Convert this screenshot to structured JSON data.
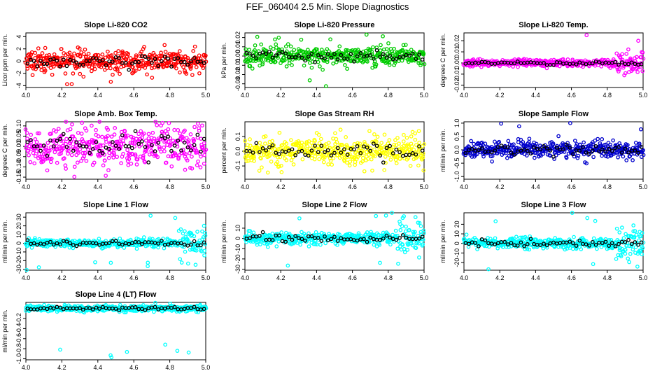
{
  "figure_title": "FEF_060404  2.5 Min. Slope Diagnostics",
  "colors": {
    "red": "#ff0000",
    "green": "#00cc00",
    "magenta": "#ff00ff",
    "yellow": "#ffff00",
    "blue": "#0000cc",
    "cyan": "#00ffff",
    "black": "#000000"
  },
  "chart_data": [
    {
      "type": "scatter",
      "title": "Slope Li-820 CO2",
      "ylabel": "Licor ppm per min.",
      "xlim": [
        4.0,
        5.0
      ],
      "ylim": [
        -4.3,
        4.6
      ],
      "xticks": [
        4.0,
        4.2,
        4.4,
        4.6,
        4.8,
        5.0
      ],
      "yticks": [
        -4,
        -2,
        0,
        2,
        4
      ],
      "color": "#ff0000",
      "spread": 0.9,
      "seed": 11
    },
    {
      "type": "scatter",
      "title": "Slope Li-820 Pressure",
      "ylabel": "kPa per min.",
      "xlim": [
        4.0,
        5.0
      ],
      "ylim": [
        -0.034,
        0.025
      ],
      "xticks": [
        4.0,
        4.2,
        4.4,
        4.6,
        4.8,
        5.0
      ],
      "yticks": [
        -0.03,
        -0.02,
        -0.01,
        0.0,
        0.01,
        0.02
      ],
      "color": "#00cc00",
      "spread": 0.005,
      "seed": 23
    },
    {
      "type": "scatter",
      "title": "Slope Li-820 Temp.",
      "ylabel": "degrees C per min.",
      "xlim": [
        4.0,
        5.0
      ],
      "ylim": [
        -0.022,
        0.027
      ],
      "xticks": [
        4.0,
        4.2,
        4.4,
        4.6,
        4.8,
        5.0
      ],
      "yticks": [
        -0.02,
        -0.01,
        0.0,
        0.01,
        0.02
      ],
      "color": "#ff00ff",
      "spread": 0.0015,
      "seed": 37
    },
    {
      "type": "scatter",
      "title": "Slope Amb. Box Temp.",
      "ylabel": "degrees C per min.",
      "xlim": [
        4.0,
        5.0
      ],
      "ylim": [
        -0.16,
        0.12
      ],
      "xticks": [
        4.0,
        4.2,
        4.4,
        4.6,
        4.8,
        5.0
      ],
      "yticks": [
        -0.15,
        -0.1,
        -0.05,
        0.0,
        0.05,
        0.1
      ],
      "color": "#ff00ff",
      "spread": 0.05,
      "seed": 41
    },
    {
      "type": "scatter",
      "title": "Slope Gas Stream RH",
      "ylabel": "percent per min.",
      "xlim": [
        4.0,
        5.0
      ],
      "ylim": [
        -0.19,
        0.2
      ],
      "xticks": [
        4.0,
        4.2,
        4.4,
        4.6,
        4.8,
        5.0
      ],
      "yticks": [
        -0.1,
        0.0,
        0.1
      ],
      "color": "#ffff00",
      "spread": 0.05,
      "seed": 53
    },
    {
      "type": "scatter",
      "title": "Slope Sample Flow",
      "ylabel": "ml/min per min.",
      "xlim": [
        4.0,
        5.0
      ],
      "ylim": [
        -1.1,
        1.05
      ],
      "xticks": [
        4.0,
        4.2,
        4.4,
        4.6,
        4.8,
        5.0
      ],
      "yticks": [
        -1.0,
        -0.5,
        0.0,
        0.5,
        1.0
      ],
      "color": "#0000cc",
      "spread": 0.15,
      "seed": 67
    },
    {
      "type": "scatter",
      "title": "Slope Line 1 Flow",
      "ylabel": "ml/min per min.",
      "xlim": [
        4.0,
        5.0
      ],
      "ylim": [
        -31,
        35
      ],
      "xticks": [
        4.0,
        4.2,
        4.4,
        4.6,
        4.8,
        5.0
      ],
      "yticks": [
        -30,
        -20,
        -10,
        0,
        10,
        20,
        30
      ],
      "color": "#00ffff",
      "spread": 2.5,
      "seed": 71
    },
    {
      "type": "scatter",
      "title": "Slope Line 2 Flow",
      "ylabel": "ml/min per min.",
      "xlim": [
        4.0,
        5.0
      ],
      "ylim": [
        -31,
        25
      ],
      "xticks": [
        4.0,
        4.2,
        4.4,
        4.6,
        4.8,
        5.0
      ],
      "yticks": [
        -30,
        -20,
        -10,
        0,
        10
      ],
      "color": "#00ffff",
      "spread": 3,
      "seed": 83
    },
    {
      "type": "scatter",
      "title": "Slope Line 3 Flow",
      "ylabel": "ml/min per min.",
      "xlim": [
        4.0,
        5.0
      ],
      "ylim": [
        -28,
        32
      ],
      "xticks": [
        4.0,
        4.2,
        4.4,
        4.6,
        4.8,
        5.0
      ],
      "yticks": [
        -20,
        -10,
        0,
        10,
        20
      ],
      "color": "#00ffff",
      "spread": 3,
      "seed": 97
    },
    {
      "type": "scatter",
      "title": "Slope Line 4 (LT) Flow",
      "ylabel": "ml/min per min.",
      "xlim": [
        4.0,
        5.0
      ],
      "ylim": [
        -1.02,
        0.12
      ],
      "xticks": [
        4.0,
        4.2,
        4.4,
        4.6,
        4.8,
        5.0
      ],
      "yticks": [
        -1.0,
        -0.8,
        -0.6,
        -0.4,
        -0.2
      ],
      "color": "#00ffff",
      "spread": 0.03,
      "seed": 101
    }
  ]
}
